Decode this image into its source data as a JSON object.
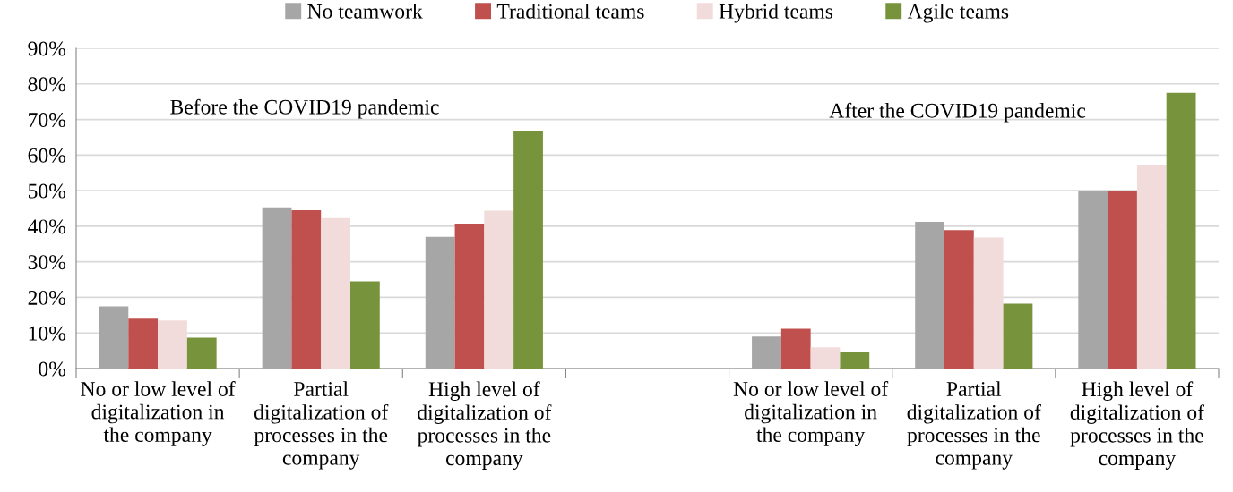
{
  "chart_data": {
    "type": "bar",
    "categories": [
      "No or low level of digitalization in the company",
      "Partial digitalization of processes in the company",
      "High level of digitalization of processes in the company",
      null,
      "No or low level of digitalization in the company",
      "Partial digitalization of processes in the company",
      "High level of digitalization of processes in the company"
    ],
    "series": [
      {
        "name": "No teamwork",
        "color": "#a6a6a6",
        "values": [
          17.5,
          45.3,
          37,
          null,
          9,
          41.2,
          50
        ]
      },
      {
        "name": "Traditional teams",
        "color": "#c0504d",
        "values": [
          14,
          44.5,
          40.7,
          null,
          11.2,
          38.9,
          50
        ]
      },
      {
        "name": "Hybrid teams",
        "color": "#f2dcdb",
        "values": [
          13.5,
          42.3,
          44.4,
          null,
          6,
          36.8,
          57.3
        ]
      },
      {
        "name": "Agile teams",
        "color": "#77933c",
        "values": [
          8.7,
          24.5,
          66.8,
          null,
          4.5,
          18.2,
          77.5
        ]
      }
    ],
    "ylim": [
      0,
      90
    ],
    "yticks": [
      {
        "value": 0,
        "label": "0%"
      },
      {
        "value": 10,
        "label": "10%"
      },
      {
        "value": 20,
        "label": "20%"
      },
      {
        "value": 30,
        "label": "30%"
      },
      {
        "value": 40,
        "label": "40%"
      },
      {
        "value": 50,
        "label": "50%"
      },
      {
        "value": 60,
        "label": "60%"
      },
      {
        "value": 70,
        "label": "70%"
      },
      {
        "value": 80,
        "label": "80%"
      },
      {
        "value": 90,
        "label": "90%"
      }
    ],
    "annotations": [
      "Before the COVID19 pandemic",
      "After the COVID19 pandemic"
    ],
    "grid": "y",
    "legend": "top"
  }
}
